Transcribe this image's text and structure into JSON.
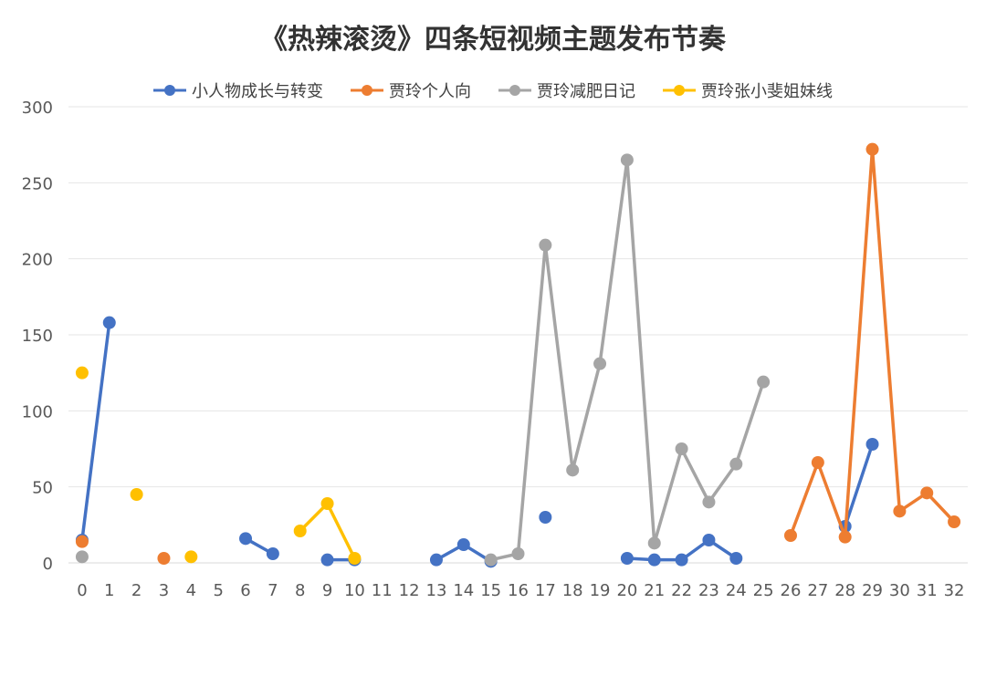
{
  "chart_data": {
    "type": "line",
    "title": "《热辣滚烫》四条短视频主题发布节奏",
    "xlabel": "",
    "ylabel": "",
    "ylim": [
      0,
      300
    ],
    "yticks": [
      0,
      50,
      100,
      150,
      200,
      250,
      300
    ],
    "categories": [
      "0",
      "1",
      "2",
      "3",
      "4",
      "5",
      "6",
      "7",
      "8",
      "9",
      "10",
      "11",
      "12",
      "13",
      "14",
      "15",
      "16",
      "17",
      "18",
      "19",
      "20",
      "21",
      "22",
      "23",
      "24",
      "25",
      "26",
      "27",
      "28",
      "29",
      "30",
      "31",
      "32"
    ],
    "legend_position": "top",
    "grid": true,
    "series": [
      {
        "name": "小人物成长与转变",
        "color": "#4472C4",
        "values": [
          15,
          158,
          null,
          null,
          null,
          null,
          16,
          6,
          null,
          2,
          2,
          null,
          null,
          2,
          12,
          1,
          null,
          30,
          null,
          null,
          3,
          2,
          2,
          15,
          3,
          null,
          null,
          null,
          24,
          78,
          null,
          null,
          null
        ]
      },
      {
        "name": "贾玲个人向",
        "color": "#ED7D31",
        "values": [
          14,
          null,
          null,
          3,
          null,
          null,
          null,
          null,
          null,
          null,
          null,
          null,
          null,
          null,
          null,
          null,
          null,
          null,
          null,
          null,
          null,
          null,
          null,
          null,
          null,
          null,
          18,
          66,
          17,
          272,
          34,
          46,
          27
        ]
      },
      {
        "name": "贾玲减肥日记",
        "color": "#A5A5A5",
        "values": [
          4,
          null,
          null,
          null,
          null,
          null,
          null,
          null,
          null,
          null,
          null,
          null,
          null,
          null,
          null,
          2,
          6,
          209,
          61,
          131,
          265,
          13,
          75,
          40,
          65,
          119,
          null,
          null,
          null,
          null,
          null,
          null,
          null
        ]
      },
      {
        "name": "贾玲张小斐姐妹线",
        "color": "#FFC000",
        "values": [
          125,
          null,
          45,
          null,
          4,
          null,
          null,
          null,
          21,
          39,
          3,
          null,
          null,
          null,
          null,
          null,
          null,
          null,
          null,
          null,
          null,
          null,
          null,
          null,
          null,
          null,
          null,
          null,
          null,
          null,
          null,
          null,
          null
        ]
      }
    ]
  }
}
